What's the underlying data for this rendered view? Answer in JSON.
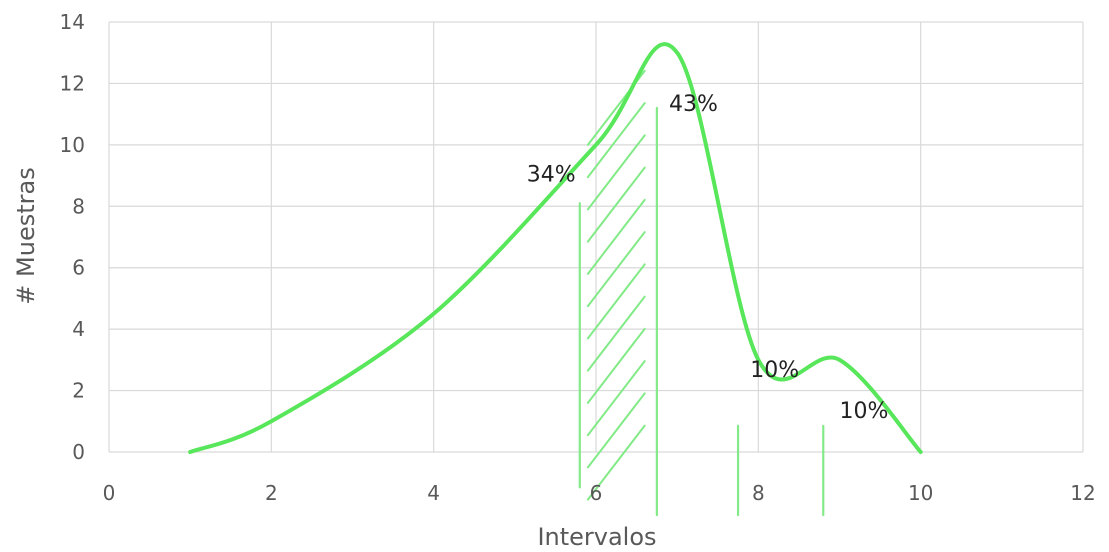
{
  "chart_data": {
    "type": "line",
    "title": "",
    "xlabel": "Intervalos",
    "ylabel": "# Muestras",
    "xlim": [
      0,
      12
    ],
    "ylim": [
      0,
      14
    ],
    "xticks": [
      0,
      2,
      4,
      6,
      8,
      10,
      12
    ],
    "yticks": [
      0,
      2,
      4,
      6,
      8,
      10,
      12,
      14
    ],
    "x": [
      1,
      2,
      4,
      6,
      7,
      8,
      9,
      10
    ],
    "series": [
      {
        "values": [
          0,
          1,
          4.5,
          10,
          13,
          3,
          3,
          0
        ]
      }
    ],
    "grid": true,
    "colors": {
      "curve": "#58e65a",
      "annotations": "#83ea88"
    },
    "annotations": [
      {
        "text": "34%",
        "x": 5.75,
        "y": 8.8
      },
      {
        "text": "43%",
        "x": 6.9,
        "y": 11.1
      },
      {
        "text": "10%",
        "x": 7.9,
        "y": 2.45
      },
      {
        "text": "10%",
        "x": 9.0,
        "y": 1.1
      }
    ],
    "reference_lines": [
      {
        "x": 5.8,
        "y_top": 8.1,
        "y_bottom": -1.15
      },
      {
        "x": 6.75,
        "y_top": 11.2,
        "y_bottom": -2.05
      },
      {
        "x": 7.75,
        "y_top": 0.85,
        "y_bottom": -2.05
      },
      {
        "x": 8.8,
        "y_top": 0.85,
        "y_bottom": -2.05
      }
    ],
    "shaded_region": {
      "x_start": 5.9,
      "x_end": 6.6,
      "y_start": -1.55,
      "y_end": 10.0,
      "pattern": "diagonal-hatch"
    }
  }
}
